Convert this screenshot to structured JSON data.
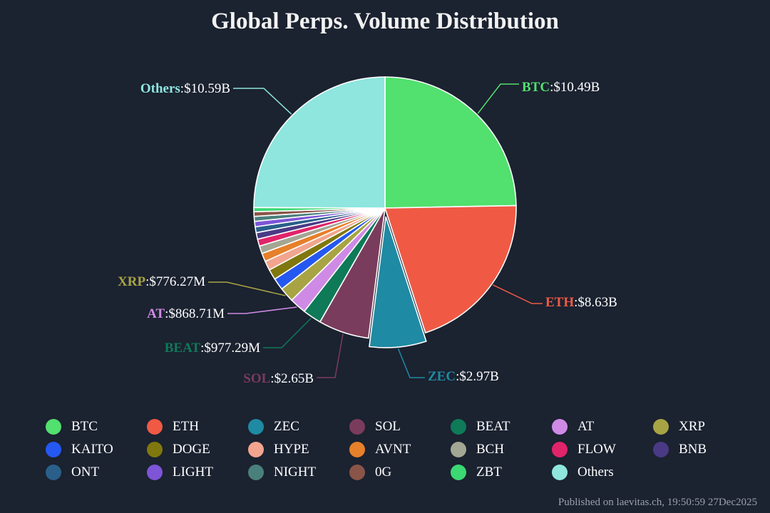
{
  "footer": "Published on laevitas.ch, 19:50:59 27Dec2025",
  "chart_data": {
    "type": "pie",
    "title": "Global Perps. Volume Distribution",
    "slices": [
      {
        "name": "BTC",
        "value": 10.49,
        "display": "$10.49B",
        "color": "#52e06e",
        "pull": false
      },
      {
        "name": "ETH",
        "value": 8.63,
        "display": "$8.63B",
        "color": "#f05a45",
        "pull": false
      },
      {
        "name": "ZEC",
        "value": 2.97,
        "display": "$2.97B",
        "color": "#1f8aa3",
        "pull": true
      },
      {
        "name": "SOL",
        "value": 2.65,
        "display": "$2.65B",
        "color": "#7a3c5c",
        "pull": false
      },
      {
        "name": "BEAT",
        "value": 0.97729,
        "display": "$977.29M",
        "color": "#0e7a58",
        "pull": false
      },
      {
        "name": "AT",
        "value": 0.86871,
        "display": "$868.71M",
        "color": "#cf8ae6",
        "pull": false
      },
      {
        "name": "XRP",
        "value": 0.77627,
        "display": "$776.27M",
        "color": "#a8a444",
        "pull": false
      },
      {
        "name": "KAITO",
        "value": 0.62,
        "color": "#2558f0",
        "pull": false
      },
      {
        "name": "DOGE",
        "value": 0.55,
        "color": "#80780e",
        "pull": false
      },
      {
        "name": "HYPE",
        "value": 0.49,
        "color": "#f2a58e",
        "pull": false
      },
      {
        "name": "AVNT",
        "value": 0.44,
        "color": "#e6802a",
        "pull": false
      },
      {
        "name": "BCH",
        "value": 0.4,
        "color": "#a3a693",
        "pull": false
      },
      {
        "name": "FLOW",
        "value": 0.37,
        "color": "#e0246a",
        "pull": false
      },
      {
        "name": "BNB",
        "value": 0.34,
        "color": "#4a3a86",
        "pull": false
      },
      {
        "name": "ONT",
        "value": 0.31,
        "color": "#2a5f8a",
        "pull": false
      },
      {
        "name": "LIGHT",
        "value": 0.28,
        "color": "#7d55d6",
        "pull": false
      },
      {
        "name": "NIGHT",
        "value": 0.26,
        "color": "#4a807c",
        "pull": false
      },
      {
        "name": "0G",
        "value": 0.24,
        "color": "#8a5548",
        "pull": false
      },
      {
        "name": "ZBT",
        "value": 0.22,
        "color": "#3bd873",
        "pull": false
      },
      {
        "name": "Others",
        "value": 10.59,
        "display": "$10.59B",
        "color": "#8ee6de",
        "pull": false
      }
    ]
  }
}
